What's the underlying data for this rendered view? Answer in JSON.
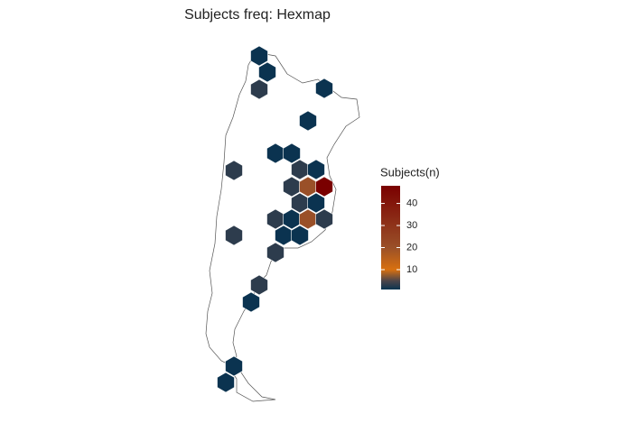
{
  "chart_data": {
    "type": "hexmap",
    "title": "Subjects freq: Hexmap",
    "legend_title": "Subjects(n)",
    "values": [
      1,
      1,
      3,
      1,
      1,
      1,
      1,
      3,
      3,
      1,
      3,
      20,
      48,
      3,
      1,
      3,
      1,
      20,
      3,
      3,
      1,
      1,
      3,
      3,
      1,
      1,
      1
    ],
    "colorscale": [
      {
        "value": 1,
        "color": "#0b3350"
      },
      {
        "value": 5,
        "color": "#4e4549"
      },
      {
        "value": 10,
        "color": "#d87010"
      },
      {
        "value": 20,
        "color": "#9a5028"
      },
      {
        "value": 48,
        "color": "#7a0000"
      }
    ],
    "colorbar_range": [
      1,
      48
    ],
    "colorbar_ticks": [
      10,
      20,
      30,
      40
    ]
  }
}
